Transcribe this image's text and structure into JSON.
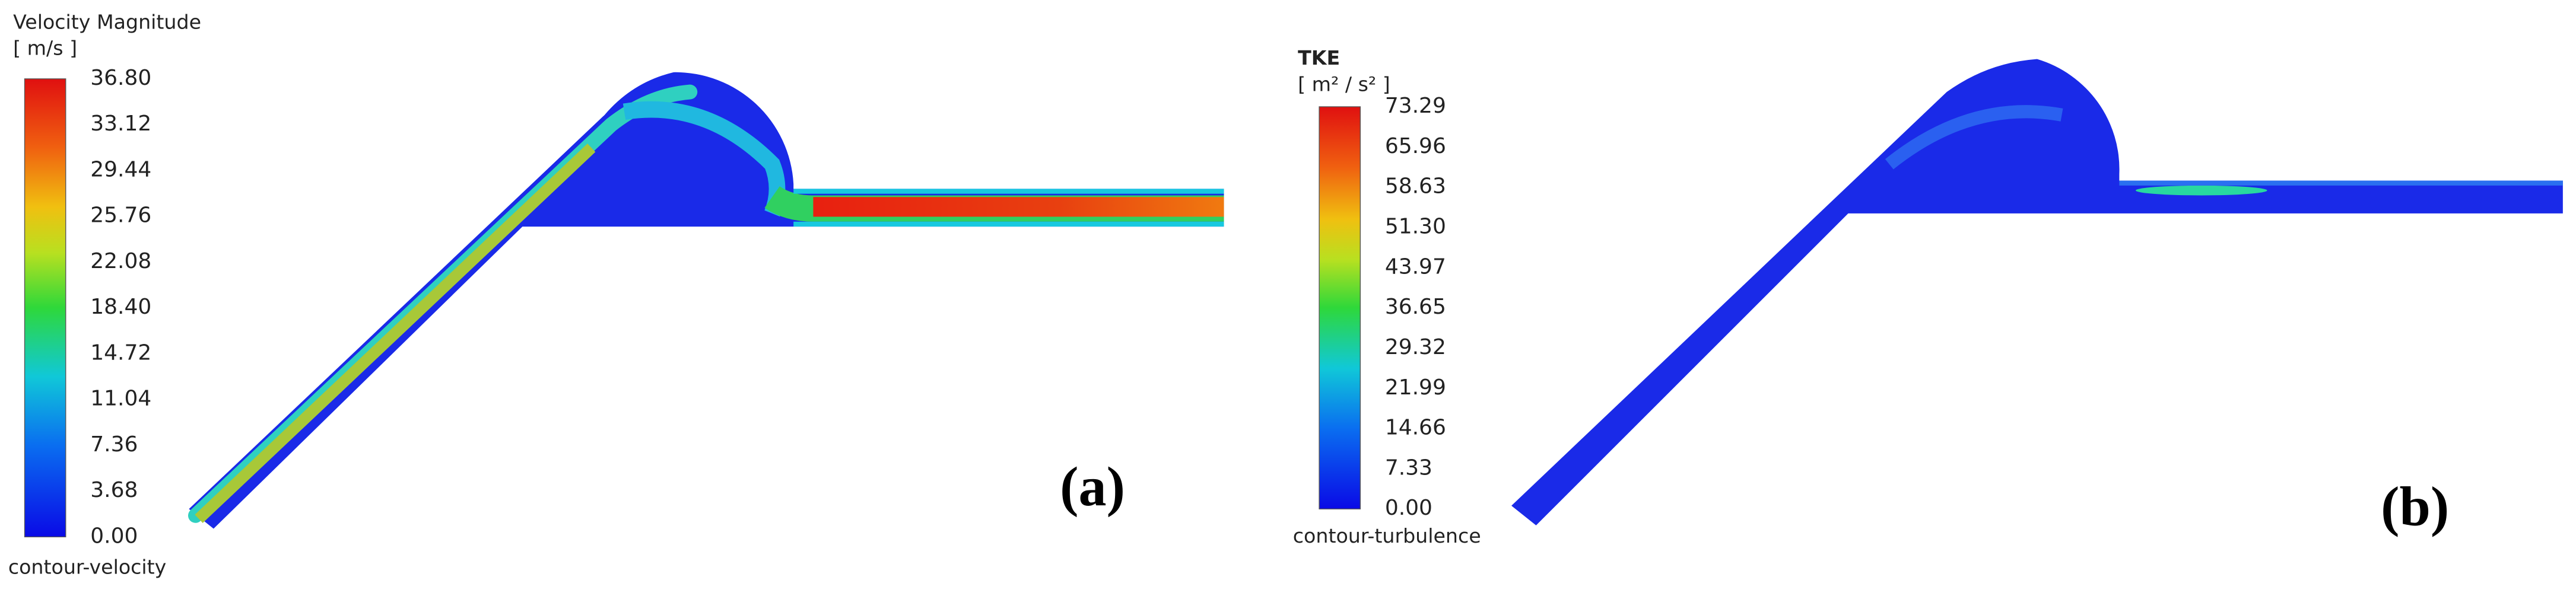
{
  "panels": [
    {
      "title": "Velocity Magnitude",
      "unit": "[ m/s ]",
      "ticks": [
        "36.80",
        "33.12",
        "29.44",
        "25.76",
        "22.08",
        "18.40",
        "14.72",
        "11.04",
        "7.36",
        "3.68",
        "0.00"
      ],
      "footer": "contour-velocity",
      "label": "(a)"
    },
    {
      "title": "TKE",
      "unit": "[ m² / s² ]",
      "ticks": [
        "73.29",
        "65.96",
        "58.63",
        "51.30",
        "43.97",
        "36.65",
        "29.32",
        "21.99",
        "14.66",
        "7.33",
        "0.00"
      ],
      "footer": "contour-turbulence",
      "label": "(b)"
    }
  ]
}
